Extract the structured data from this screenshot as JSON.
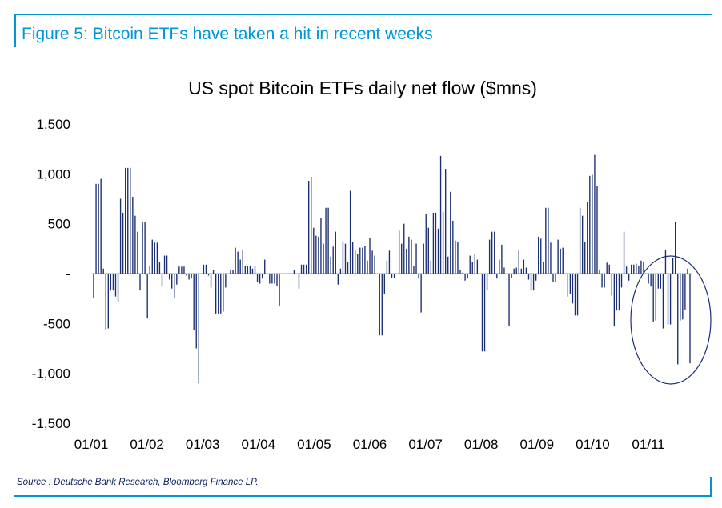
{
  "figure": {
    "title": "Figure 5: Bitcoin ETFs have taken a hit in recent weeks",
    "source": "Source : Deutsche Bank Research, Bloomberg Finance LP.",
    "accent_color": "#0096d6"
  },
  "chart_data": {
    "type": "bar",
    "title": "US spot Bitcoin ETFs daily net flow ($mns)",
    "xlabel": "",
    "ylabel": "",
    "ylim": [
      -1500,
      1500
    ],
    "y_ticks": [
      1500,
      1000,
      500,
      0,
      -500,
      -1000,
      -1500
    ],
    "y_tick_labels": [
      "1,500",
      "1,000",
      "500",
      "-",
      "-500",
      "-1,000",
      "-1,500"
    ],
    "x_tick_labels": [
      "01/01",
      "01/02",
      "01/03",
      "01/04",
      "01/05",
      "01/06",
      "01/07",
      "01/08",
      "01/09",
      "01/10",
      "01/11"
    ],
    "bar_color": "#1b2f73",
    "series": [
      {
        "values": [
          -240,
          900,
          900,
          950,
          50,
          -560,
          -550,
          -170,
          -170,
          -230,
          -280,
          750,
          610,
          1060,
          1060,
          1060,
          770,
          580,
          420,
          -170,
          520,
          520,
          -450,
          80,
          340,
          310,
          310,
          120,
          -130,
          180,
          180,
          -60,
          -150,
          -250,
          -110,
          70,
          70,
          70,
          -20,
          -60,
          -50,
          -570,
          -750,
          -1100,
          0,
          90,
          90,
          -20,
          -140,
          40,
          -400,
          -400,
          -400,
          -380,
          -140,
          0,
          40,
          40,
          260,
          220,
          140,
          240,
          80,
          80,
          80,
          50,
          80,
          -80,
          -100,
          -50,
          140,
          0,
          -100,
          -100,
          -100,
          -120,
          -320,
          0,
          0,
          0,
          0,
          0,
          40,
          0,
          -150,
          90,
          90,
          90,
          930,
          970,
          460,
          380,
          370,
          560,
          300,
          660,
          660,
          170,
          270,
          420,
          -110,
          50,
          320,
          300,
          120,
          830,
          320,
          230,
          200,
          260,
          260,
          280,
          130,
          360,
          230,
          180,
          0,
          -620,
          -620,
          -200,
          130,
          230,
          -40,
          -40,
          0,
          430,
          300,
          500,
          250,
          370,
          340,
          80,
          300,
          -50,
          -390,
          300,
          600,
          460,
          130,
          610,
          610,
          450,
          1180,
          620,
          1050,
          170,
          820,
          530,
          330,
          320,
          40,
          10,
          -70,
          -50,
          180,
          120,
          200,
          140,
          0,
          -780,
          -780,
          -170,
          340,
          420,
          420,
          -50,
          140,
          290,
          60,
          0,
          -530,
          -40,
          50,
          60,
          230,
          50,
          140,
          60,
          -60,
          -170,
          -170,
          -70,
          370,
          350,
          120,
          660,
          660,
          310,
          -80,
          -80,
          340,
          250,
          260,
          0,
          -230,
          -200,
          -300,
          -420,
          -420,
          660,
          580,
          320,
          720,
          980,
          990,
          1190,
          880,
          40,
          -140,
          -140,
          110,
          90,
          -220,
          -530,
          -370,
          -370,
          -140,
          420,
          70,
          -70,
          90,
          90,
          100,
          80,
          130,
          120,
          0,
          -100,
          -130,
          -480,
          -470,
          -150,
          -150,
          -550,
          240,
          -510,
          -510,
          160,
          520,
          -910,
          -470,
          -460,
          -360,
          50,
          -900
        ]
      }
    ],
    "annotations": [
      "ellipse highlighting recent outflows (late October to November)"
    ]
  }
}
